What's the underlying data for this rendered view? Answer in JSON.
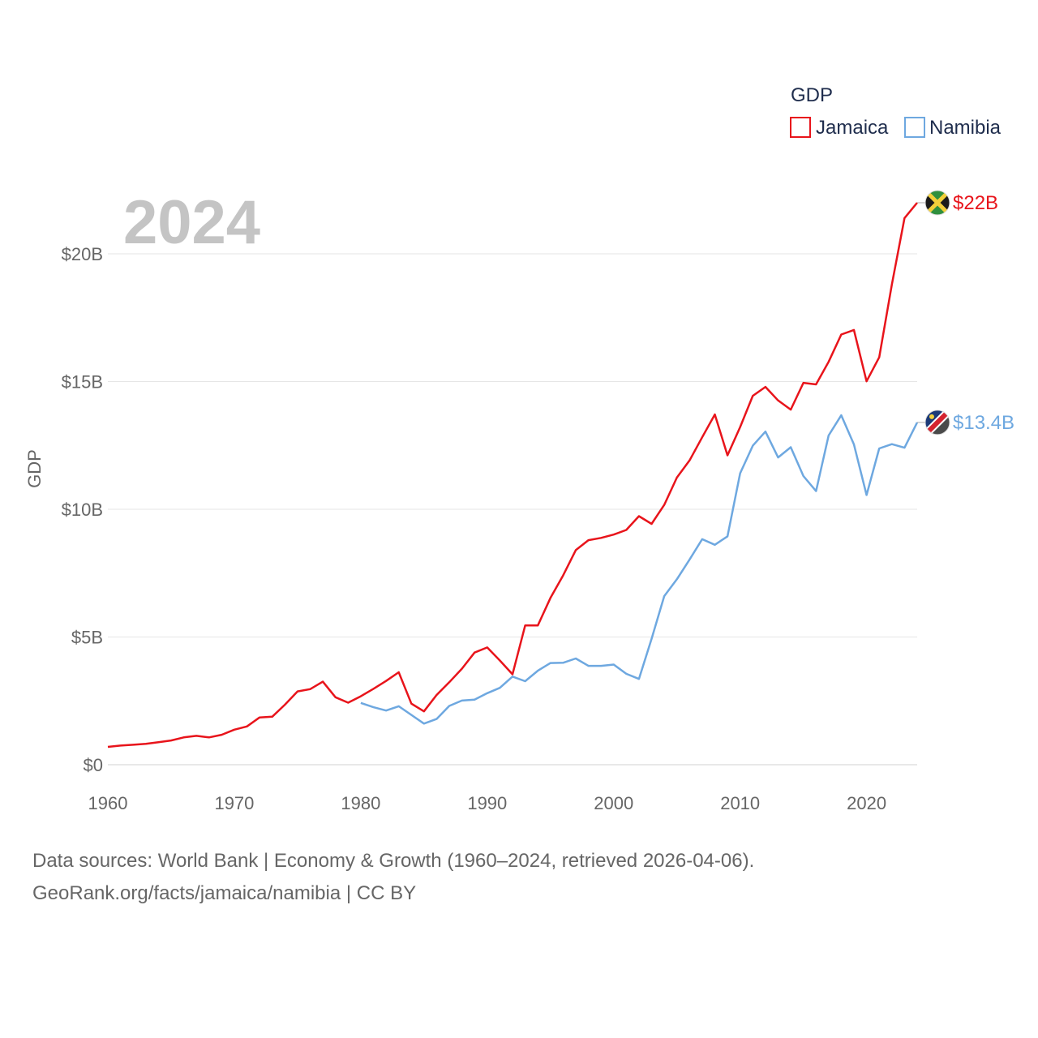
{
  "chart_data": {
    "type": "line",
    "title": "GDP",
    "year_label": "2024",
    "ylabel": "GDP",
    "xlabel": "",
    "xlim": [
      1960,
      2024
    ],
    "ylim": [
      0,
      22.5
    ],
    "x_ticks": [
      1960,
      1970,
      1980,
      1990,
      2000,
      2010,
      2020
    ],
    "x_tick_labels": [
      "1960",
      "1970",
      "1980",
      "1990",
      "2000",
      "2010",
      "2020"
    ],
    "y_ticks": [
      0,
      5,
      10,
      15,
      20
    ],
    "y_tick_labels": [
      "$0",
      "$5B",
      "$10B",
      "$15B",
      "$20B"
    ],
    "y_unit": "billion USD",
    "grid": true,
    "legend_position": "top-right",
    "series": [
      {
        "name": "Jamaica",
        "color": "#e8141b",
        "end_label": "$22B",
        "flag_icon": "jamaica-flag-icon",
        "x": [
          1960,
          1961,
          1962,
          1963,
          1964,
          1965,
          1966,
          1967,
          1968,
          1969,
          1970,
          1971,
          1972,
          1973,
          1974,
          1975,
          1976,
          1977,
          1978,
          1979,
          1980,
          1981,
          1982,
          1983,
          1984,
          1985,
          1986,
          1987,
          1988,
          1989,
          1990,
          1991,
          1992,
          1993,
          1994,
          1995,
          1996,
          1997,
          1998,
          1999,
          2000,
          2001,
          2002,
          2003,
          2004,
          2005,
          2006,
          2007,
          2008,
          2009,
          2010,
          2011,
          2012,
          2013,
          2014,
          2015,
          2016,
          2017,
          2018,
          2019,
          2020,
          2021,
          2022,
          2023,
          2024
        ],
        "values": [
          0.7,
          0.75,
          0.78,
          0.82,
          0.88,
          0.95,
          1.07,
          1.13,
          1.07,
          1.17,
          1.37,
          1.5,
          1.85,
          1.88,
          2.35,
          2.87,
          2.96,
          3.25,
          2.64,
          2.43,
          2.68,
          2.97,
          3.28,
          3.62,
          2.39,
          2.09,
          2.73,
          3.23,
          3.76,
          4.39,
          4.59,
          4.08,
          3.54,
          5.45,
          5.45,
          6.53,
          7.41,
          8.4,
          8.79,
          8.88,
          9.01,
          9.19,
          9.73,
          9.43,
          10.17,
          11.24,
          11.91,
          12.82,
          13.71,
          12.11,
          13.22,
          14.44,
          14.79,
          14.26,
          13.9,
          14.95,
          14.89,
          15.77,
          16.84,
          17.02,
          15.01,
          15.95,
          18.8,
          21.4,
          22.0
        ]
      },
      {
        "name": "Namibia",
        "color": "#6ea8e0",
        "end_label": "$13.4B",
        "flag_icon": "namibia-flag-icon",
        "x": [
          1980,
          1981,
          1982,
          1983,
          1984,
          1985,
          1986,
          1987,
          1988,
          1989,
          1990,
          1991,
          1992,
          1993,
          1994,
          1995,
          1996,
          1997,
          1998,
          1999,
          2000,
          2001,
          2002,
          2003,
          2004,
          2005,
          2006,
          2007,
          2008,
          2009,
          2010,
          2011,
          2012,
          2013,
          2014,
          2015,
          2016,
          2017,
          2018,
          2019,
          2020,
          2021,
          2022,
          2023,
          2024
        ],
        "values": [
          2.42,
          2.25,
          2.12,
          2.29,
          1.95,
          1.61,
          1.79,
          2.3,
          2.51,
          2.55,
          2.8,
          3.01,
          3.45,
          3.27,
          3.68,
          3.98,
          3.99,
          4.16,
          3.87,
          3.87,
          3.92,
          3.56,
          3.36,
          4.93,
          6.6,
          7.26,
          8.03,
          8.83,
          8.61,
          8.94,
          11.41,
          12.49,
          13.04,
          12.03,
          12.43,
          11.3,
          10.71,
          12.89,
          13.68,
          12.54,
          10.56,
          12.38,
          12.55,
          12.41,
          13.4
        ]
      }
    ]
  },
  "source": {
    "line1": "Data sources: World Bank | Economy & Growth (1960–2024, retrieved 2026-04-06).",
    "line2": "GeoRank.org/facts/jamaica/namibia | CC BY"
  }
}
